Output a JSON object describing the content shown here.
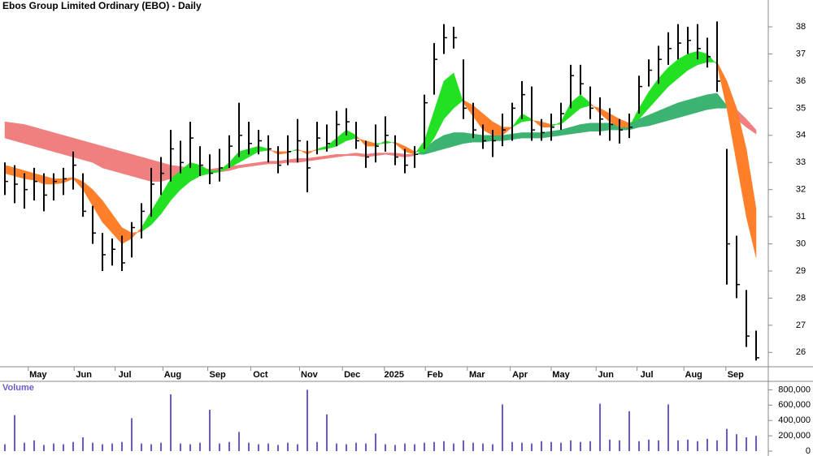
{
  "chart_data": [
    {
      "type": "ohlc",
      "title": "Ebos Group Limited Ordinary (EBO) - Daily",
      "xlim": [
        -0.5,
        77.5
      ],
      "xticks": [
        {
          "value": 3.4,
          "label": "May"
        },
        {
          "value": 8.1,
          "label": "Jun"
        },
        {
          "value": 12.3,
          "label": "Jul"
        },
        {
          "value": 17.2,
          "label": "Aug"
        },
        {
          "value": 21.8,
          "label": "Sep"
        },
        {
          "value": 26.2,
          "label": "Oct"
        },
        {
          "value": 31.2,
          "label": "Nov"
        },
        {
          "value": 35.6,
          "label": "Dec"
        },
        {
          "value": 39.9,
          "label": "2025"
        },
        {
          "value": 44.1,
          "label": "Feb"
        },
        {
          "value": 48.4,
          "label": "Mar"
        },
        {
          "value": 52.8,
          "label": "Apr"
        },
        {
          "value": 57,
          "label": "May"
        },
        {
          "value": 61.6,
          "label": "Jun"
        },
        {
          "value": 65.8,
          "label": "Jul"
        },
        {
          "value": 70.6,
          "label": "Aug"
        },
        {
          "value": 74.9,
          "label": "Sep"
        }
      ],
      "ylim": [
        25.5,
        38.6
      ],
      "yticks": [
        26,
        27,
        28,
        29,
        30,
        31,
        32,
        33,
        34,
        35,
        36,
        37,
        38
      ],
      "color": "#000000",
      "high": [
        33.0,
        32.9,
        32.6,
        32.8,
        32.6,
        32.6,
        32.8,
        33.4,
        32.6,
        31.4,
        30.4,
        30.2,
        30.3,
        30.8,
        31.5,
        32.8,
        33.2,
        34.2,
        33.8,
        34.5,
        33.6,
        33.3,
        33.5,
        34.0,
        35.2,
        34.5,
        34.2,
        34.0,
        33.6,
        34.0,
        34.6,
        33.8,
        34.5,
        34.4,
        34.9,
        35.0,
        34.5,
        33.8,
        34.4,
        34.7,
        34.0,
        33.5,
        33.6,
        35.5,
        37.4,
        38.1,
        38.0,
        36.8,
        35.2,
        34.4,
        34.2,
        34.8,
        35.2,
        36.0,
        35.8,
        34.6,
        34.8,
        35.2,
        36.6,
        36.6,
        35.8,
        35.4,
        35.0,
        34.6,
        34.8,
        36.2,
        36.8,
        37.3,
        37.8,
        38.1,
        38.0,
        38.1,
        37.6,
        38.2,
        33.5,
        30.3,
        28.3,
        26.8
      ],
      "low": [
        31.8,
        31.5,
        31.3,
        31.6,
        31.2,
        31.6,
        31.8,
        32.0,
        31.0,
        30.0,
        29.0,
        29.2,
        29.0,
        29.5,
        30.2,
        31.0,
        31.8,
        32.3,
        32.6,
        32.8,
        32.5,
        32.2,
        32.3,
        32.8,
        33.2,
        33.3,
        33.3,
        33.0,
        32.6,
        32.9,
        33.0,
        31.9,
        33.3,
        33.4,
        33.6,
        34.0,
        33.5,
        32.8,
        33.0,
        33.4,
        32.9,
        32.6,
        32.8,
        33.5,
        35.5,
        37.0,
        37.2,
        34.6,
        33.9,
        33.5,
        33.2,
        33.6,
        33.8,
        34.6,
        33.8,
        33.8,
        33.8,
        34.2,
        35.0,
        35.5,
        34.6,
        34.0,
        33.8,
        33.7,
        33.9,
        34.8,
        35.8,
        35.9,
        36.6,
        36.8,
        37.0,
        36.8,
        36.5,
        35.6,
        28.5,
        28.0,
        26.2,
        25.7
      ],
      "close": [
        32.3,
        32.2,
        32.0,
        32.3,
        31.8,
        32.3,
        32.4,
        32.9,
        31.2,
        30.4,
        29.6,
        29.8,
        29.3,
        30.6,
        31.2,
        32.2,
        32.6,
        33.5,
        33.0,
        33.9,
        32.9,
        32.6,
        32.8,
        33.6,
        34.0,
        33.7,
        33.8,
        33.5,
        32.9,
        33.4,
        33.8,
        32.8,
        33.9,
        33.7,
        34.4,
        34.5,
        33.8,
        33.2,
        33.6,
        34.0,
        33.2,
        32.9,
        33.3,
        35.2,
        36.8,
        37.6,
        37.6,
        35.0,
        34.2,
        33.8,
        33.8,
        34.2,
        35.0,
        35.5,
        34.2,
        34.1,
        34.3,
        34.8,
        36.2,
        35.9,
        35.0,
        34.6,
        34.4,
        34.2,
        34.3,
        35.8,
        36.4,
        36.8,
        37.2,
        37.4,
        37.5,
        37.2,
        36.9,
        36.0,
        30.0,
        28.5,
        26.6,
        25.8
      ],
      "bands": [
        {
          "up_color": "#3cb371",
          "down_color": "#f08080",
          "a": [
            33.9,
            33.8,
            33.7,
            33.6,
            33.5,
            33.4,
            33.3,
            33.2,
            33.1,
            33.0,
            32.8,
            32.7,
            32.6,
            32.5,
            32.4,
            32.3,
            32.3,
            32.4,
            32.5,
            32.55,
            32.6,
            32.6,
            32.65,
            32.7,
            32.8,
            32.85,
            32.9,
            32.95,
            32.95,
            33.0,
            33.0,
            33.05,
            33.1,
            33.15,
            33.2,
            33.25,
            33.25,
            33.2,
            33.25,
            33.3,
            33.25,
            33.2,
            33.25,
            33.5,
            33.8,
            34.0,
            34.1,
            34.1,
            34.05,
            34.0,
            34.0,
            34.0,
            34.05,
            34.1,
            34.1,
            34.1,
            34.15,
            34.2,
            34.3,
            34.4,
            34.45,
            34.45,
            34.45,
            34.4,
            34.45,
            34.6,
            34.75,
            34.9,
            35.05,
            35.2,
            35.3,
            35.4,
            35.5,
            35.55,
            35.1,
            34.6,
            34.3,
            34.05
          ],
          "b": [
            34.5,
            34.45,
            34.4,
            34.3,
            34.2,
            34.1,
            34.0,
            33.9,
            33.8,
            33.7,
            33.6,
            33.5,
            33.4,
            33.3,
            33.2,
            33.1,
            33.0,
            32.9,
            32.85,
            32.8,
            32.8,
            32.75,
            32.8,
            32.85,
            32.9,
            32.95,
            33.0,
            33.05,
            33.05,
            33.1,
            33.15,
            33.15,
            33.2,
            33.25,
            33.3,
            33.3,
            33.35,
            33.3,
            33.35,
            33.35,
            33.35,
            33.3,
            33.3,
            33.3,
            33.4,
            33.5,
            33.6,
            33.7,
            33.75,
            33.75,
            33.8,
            33.8,
            33.85,
            33.9,
            33.9,
            33.9,
            33.95,
            34.0,
            34.05,
            34.1,
            34.15,
            34.15,
            34.2,
            34.2,
            34.2,
            34.3,
            34.35,
            34.45,
            34.55,
            34.65,
            34.75,
            34.85,
            34.95,
            35.0,
            35.0,
            34.95,
            34.6,
            34.2
          ]
        },
        {
          "up_color": "#22e022",
          "down_color": "#ff7f2a",
          "a": [
            32.6,
            32.5,
            32.4,
            32.35,
            32.2,
            32.2,
            32.25,
            32.4,
            32.0,
            31.4,
            30.8,
            30.4,
            30.0,
            30.2,
            30.6,
            31.2,
            31.8,
            32.4,
            32.7,
            33.0,
            32.9,
            32.7,
            32.7,
            33.0,
            33.4,
            33.5,
            33.6,
            33.5,
            33.3,
            33.35,
            33.5,
            33.3,
            33.5,
            33.6,
            33.9,
            34.2,
            34.0,
            33.6,
            33.6,
            33.8,
            33.7,
            33.4,
            33.3,
            33.8,
            34.9,
            36.0,
            36.3,
            35.2,
            34.7,
            34.2,
            34.0,
            34.0,
            34.3,
            34.8,
            34.6,
            34.3,
            34.3,
            34.5,
            35.2,
            35.5,
            35.2,
            34.8,
            34.5,
            34.3,
            34.3,
            35.0,
            35.6,
            36.1,
            36.5,
            36.8,
            37.0,
            37.1,
            37.0,
            36.6,
            35.0,
            33.0,
            31.0,
            29.5
          ],
          "b": [
            32.9,
            32.8,
            32.7,
            32.6,
            32.5,
            32.4,
            32.4,
            32.45,
            32.3,
            32.0,
            31.6,
            31.1,
            30.6,
            30.4,
            30.45,
            30.7,
            31.1,
            31.6,
            32.0,
            32.3,
            32.5,
            32.6,
            32.65,
            32.8,
            33.0,
            33.2,
            33.4,
            33.45,
            33.4,
            33.4,
            33.45,
            33.4,
            33.45,
            33.5,
            33.6,
            33.8,
            33.9,
            33.8,
            33.7,
            33.7,
            33.75,
            33.6,
            33.4,
            33.4,
            33.9,
            34.6,
            35.0,
            35.3,
            35.1,
            34.8,
            34.5,
            34.3,
            34.3,
            34.5,
            34.55,
            34.5,
            34.4,
            34.4,
            34.7,
            35.0,
            35.1,
            35.0,
            34.8,
            34.6,
            34.45,
            34.6,
            35.0,
            35.4,
            35.8,
            36.1,
            36.4,
            36.6,
            36.7,
            36.7,
            36.0,
            35.0,
            33.5,
            31.3
          ]
        }
      ]
    },
    {
      "type": "volume",
      "title": "Volume",
      "color": "#6a5acd",
      "xlim": [
        -0.5,
        77.5
      ],
      "ylim": [
        0,
        900000
      ],
      "yticks": [
        0,
        {
          "value": 200000,
          "label": "200,000"
        },
        {
          "value": 400000,
          "label": "400,000"
        },
        {
          "value": 600000,
          "label": "600,000"
        },
        {
          "value": 800000,
          "label": "800,000"
        }
      ],
      "values": [
        90000,
        470000,
        110000,
        140000,
        80000,
        100000,
        90000,
        120000,
        180000,
        110000,
        90000,
        100000,
        120000,
        430000,
        100000,
        90000,
        110000,
        740000,
        100000,
        90000,
        110000,
        540000,
        100000,
        120000,
        250000,
        110000,
        90000,
        100000,
        80000,
        110000,
        90000,
        800000,
        120000,
        480000,
        100000,
        90000,
        110000,
        100000,
        230000,
        90000,
        80000,
        100000,
        90000,
        110000,
        120000,
        130000,
        100000,
        140000,
        110000,
        100000,
        90000,
        610000,
        120000,
        110000,
        100000,
        130000,
        120000,
        110000,
        140000,
        120000,
        130000,
        620000,
        150000,
        140000,
        520000,
        130000,
        150000,
        140000,
        610000,
        140000,
        150000,
        130000,
        160000,
        140000,
        290000,
        220000,
        180000,
        200000
      ]
    }
  ]
}
